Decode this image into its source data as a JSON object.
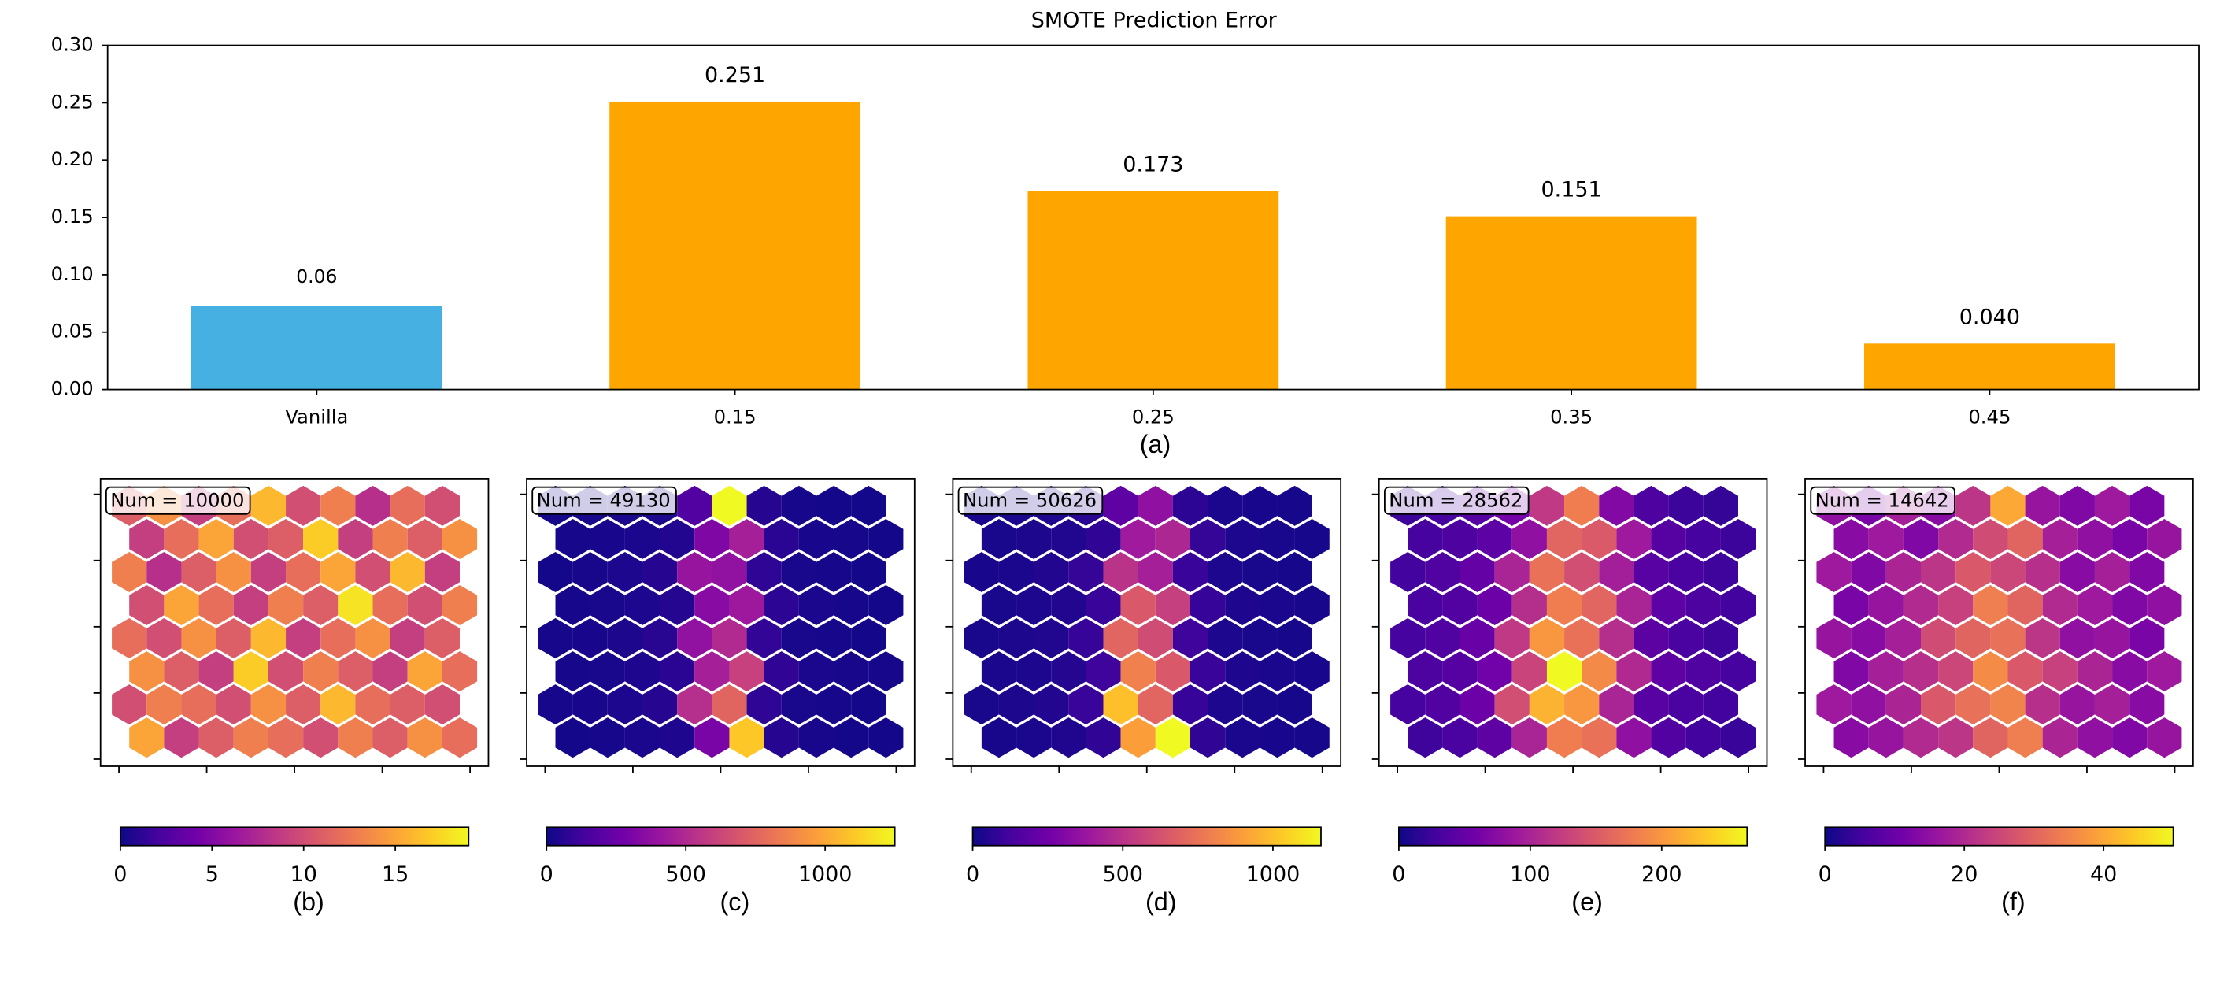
{
  "chart_data": [
    {
      "type": "bar",
      "title": "SMOTE Prediction Error",
      "caption": "(a)",
      "categories": [
        "Vanilla",
        "0.15",
        "0.25",
        "0.35",
        "0.45"
      ],
      "values": [
        0.073,
        0.251,
        0.173,
        0.151,
        0.04
      ],
      "value_labels": [
        null,
        "0.251",
        "0.173",
        "0.151",
        "0.040"
      ],
      "annotations": [
        {
          "text": "0.06"
        }
      ],
      "colors": [
        "#45b0e1",
        "#ffa500",
        "#ffa500",
        "#ffa500",
        "#ffa500"
      ],
      "ylim": [
        0,
        0.3
      ],
      "yticks": [
        {
          "value": 0,
          "label": "0.00"
        },
        {
          "value": 0.05,
          "label": "0.05"
        },
        {
          "value": 0.1,
          "label": "0.10"
        },
        {
          "value": 0.15,
          "label": "0.15"
        },
        {
          "value": 0.2,
          "label": "0.20"
        },
        {
          "value": 0.25,
          "label": "0.25"
        },
        {
          "value": 0.3,
          "label": "0.30"
        }
      ]
    },
    {
      "type": "hexbin",
      "annotation": "Num = 10000",
      "caption": "(b)",
      "cmap": "plasma",
      "clim": [
        0,
        19
      ],
      "cticks": [
        0,
        5,
        10,
        15
      ],
      "grid": [
        [
          11,
          14,
          9,
          12,
          16,
          10,
          13,
          8,
          12,
          10
        ],
        [
          9,
          12,
          15,
          10,
          11,
          17,
          9,
          13,
          11,
          14
        ],
        [
          13,
          8,
          11,
          14,
          9,
          12,
          15,
          10,
          16,
          9
        ],
        [
          10,
          15,
          12,
          9,
          13,
          11,
          18,
          12,
          10,
          13
        ],
        [
          12,
          10,
          14,
          11,
          16,
          9,
          12,
          14,
          9,
          11
        ],
        [
          14,
          11,
          9,
          17,
          10,
          13,
          11,
          9,
          15,
          12
        ],
        [
          10,
          13,
          12,
          10,
          14,
          11,
          16,
          12,
          11,
          10
        ],
        [
          15,
          9,
          11,
          13,
          12,
          10,
          13,
          11,
          14,
          12
        ]
      ]
    },
    {
      "type": "hexbin",
      "annotation": "Num = 49130",
      "caption": "(c)",
      "cmap": "plasma",
      "clim": [
        0,
        1250
      ],
      "cticks": [
        0,
        500,
        1000
      ],
      "grid": [
        [
          20,
          25,
          30,
          40,
          180,
          1250,
          60,
          25,
          20,
          15
        ],
        [
          22,
          28,
          35,
          50,
          320,
          450,
          70,
          28,
          22,
          18
        ],
        [
          20,
          26,
          38,
          60,
          400,
          380,
          80,
          30,
          24,
          20
        ],
        [
          24,
          30,
          40,
          55,
          350,
          420,
          75,
          32,
          25,
          18
        ],
        [
          22,
          28,
          36,
          65,
          380,
          500,
          90,
          30,
          22,
          20
        ],
        [
          25,
          30,
          42,
          70,
          450,
          600,
          85,
          34,
          26,
          22
        ],
        [
          22,
          27,
          38,
          60,
          520,
          750,
          80,
          30,
          24,
          19
        ],
        [
          18,
          24,
          32,
          45,
          300,
          1100,
          60,
          26,
          20,
          16
        ]
      ]
    },
    {
      "type": "hexbin",
      "annotation": "Num = 50626",
      "caption": "(d)",
      "cmap": "plasma",
      "clim": [
        0,
        1160
      ],
      "cticks": [
        0,
        500,
        1000
      ],
      "grid": [
        [
          25,
          30,
          40,
          60,
          200,
          350,
          70,
          30,
          25,
          20
        ],
        [
          28,
          34,
          45,
          80,
          400,
          450,
          90,
          35,
          28,
          22
        ],
        [
          26,
          32,
          48,
          90,
          500,
          420,
          100,
          36,
          27,
          23
        ],
        [
          28,
          35,
          50,
          100,
          650,
          550,
          95,
          38,
          30,
          24
        ],
        [
          27,
          33,
          46,
          95,
          700,
          600,
          110,
          36,
          28,
          22
        ],
        [
          30,
          36,
          52,
          110,
          800,
          650,
          100,
          40,
          30,
          25
        ],
        [
          28,
          34,
          48,
          100,
          1000,
          700,
          95,
          36,
          28,
          23
        ],
        [
          24,
          30,
          42,
          80,
          900,
          1160,
          80,
          32,
          26,
          20
        ]
      ]
    },
    {
      "type": "hexbin",
      "annotation": "Num = 28562",
      "caption": "(e)",
      "cmap": "plasma",
      "clim": [
        0,
        265
      ],
      "cticks": [
        0,
        100,
        200
      ],
      "grid": [
        [
          25,
          30,
          40,
          60,
          120,
          180,
          70,
          35,
          25,
          20
        ],
        [
          30,
          35,
          45,
          80,
          160,
          150,
          90,
          40,
          30,
          25
        ],
        [
          28,
          36,
          50,
          100,
          170,
          140,
          95,
          42,
          32,
          26
        ],
        [
          32,
          38,
          55,
          110,
          180,
          160,
          100,
          45,
          34,
          28
        ],
        [
          30,
          36,
          52,
          120,
          200,
          170,
          110,
          44,
          32,
          26
        ],
        [
          34,
          40,
          58,
          130,
          265,
          190,
          105,
          46,
          36,
          30
        ],
        [
          30,
          38,
          55,
          140,
          220,
          200,
          100,
          42,
          32,
          28
        ],
        [
          26,
          32,
          46,
          100,
          180,
          170,
          80,
          38,
          28,
          22
        ]
      ]
    },
    {
      "type": "hexbin",
      "annotation": "Num = 14642",
      "caption": "(f)",
      "cmap": "plasma",
      "clim": [
        0,
        50
      ],
      "cticks": [
        0,
        20,
        40
      ],
      "grid": [
        [
          15,
          12,
          18,
          14,
          22,
          40,
          16,
          13,
          17,
          12
        ],
        [
          14,
          17,
          13,
          20,
          26,
          30,
          18,
          15,
          12,
          16
        ],
        [
          17,
          13,
          19,
          22,
          28,
          25,
          21,
          14,
          18,
          13
        ],
        [
          12,
          16,
          20,
          24,
          34,
          30,
          20,
          17,
          13,
          15
        ],
        [
          16,
          14,
          18,
          26,
          30,
          32,
          22,
          15,
          16,
          12
        ],
        [
          13,
          18,
          21,
          25,
          36,
          28,
          24,
          19,
          14,
          17
        ],
        [
          17,
          15,
          19,
          28,
          32,
          35,
          21,
          16,
          18,
          14
        ],
        [
          14,
          16,
          20,
          22,
          30,
          34,
          19,
          15,
          13,
          16
        ]
      ]
    }
  ]
}
